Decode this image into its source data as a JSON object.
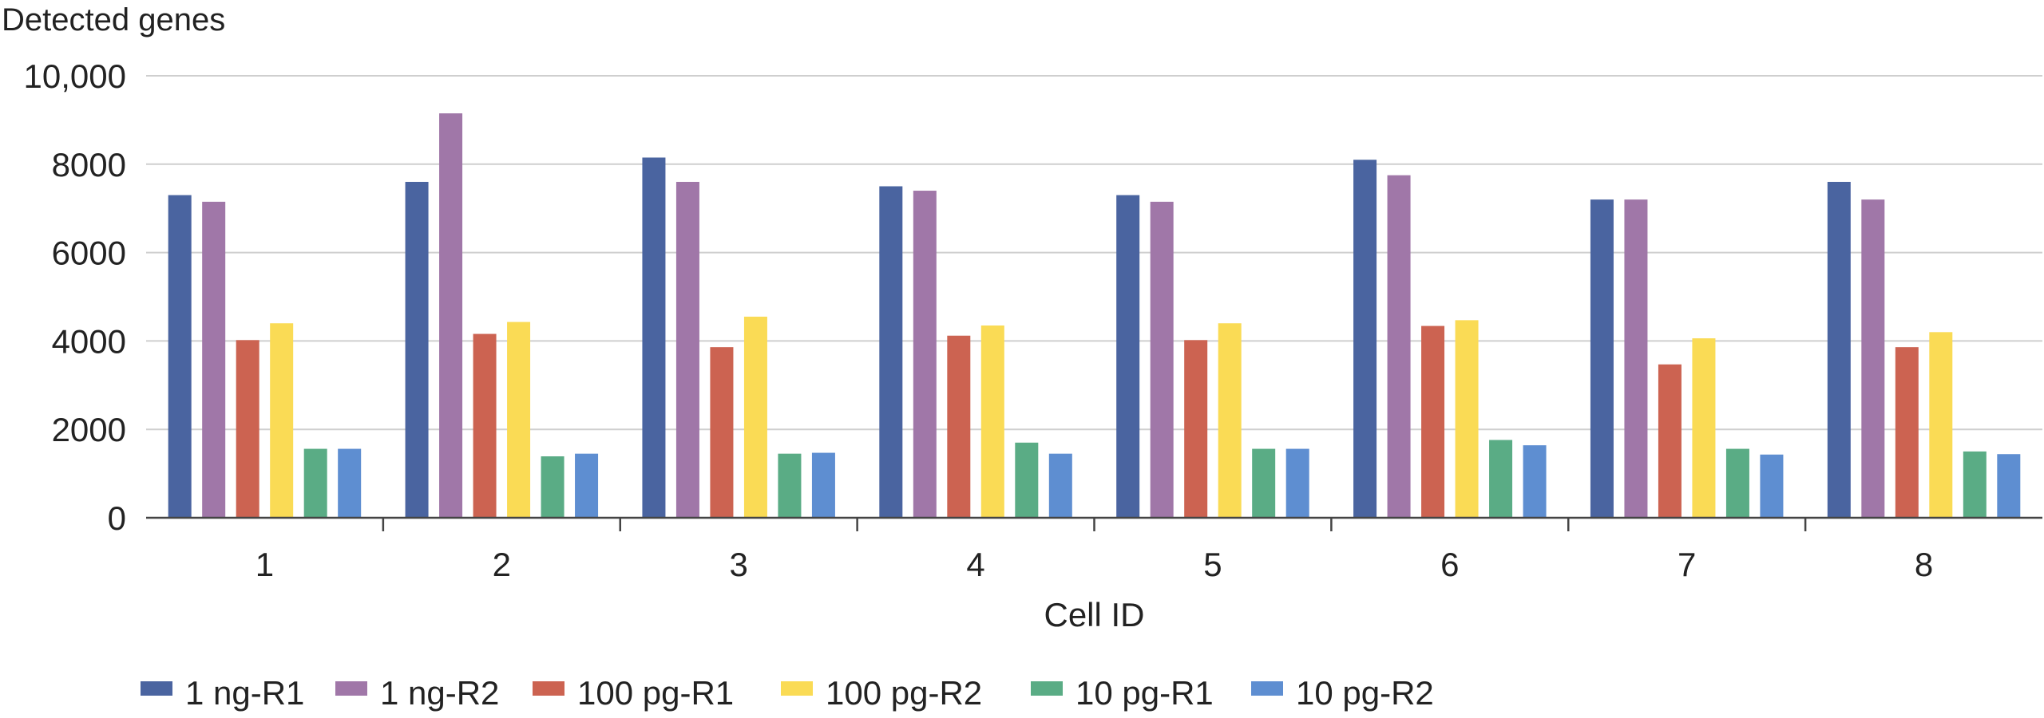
{
  "chart_data": {
    "type": "bar",
    "title": "",
    "ylabel": "Detected genes",
    "xlabel": "Cell ID",
    "ylim": [
      0,
      10000
    ],
    "yticks": [
      0,
      2000,
      4000,
      6000,
      8000,
      10000
    ],
    "ytick_labels": [
      "0",
      "2000",
      "4000",
      "6000",
      "8000",
      "10,000"
    ],
    "grid": true,
    "legend_position": "bottom",
    "categories": [
      "1",
      "2",
      "3",
      "4",
      "5",
      "6",
      "7",
      "8"
    ],
    "series": [
      {
        "name": "1 ng-R1",
        "color": "#4a64a0",
        "values": [
          7300,
          7600,
          8150,
          7500,
          7300,
          8100,
          7200,
          7600
        ]
      },
      {
        "name": "1 ng-R2",
        "color": "#a077a8",
        "values": [
          7150,
          9150,
          7600,
          7400,
          7150,
          7750,
          7200,
          7200
        ]
      },
      {
        "name": "100 pg-R1",
        "color": "#cc6351",
        "values": [
          4020,
          4160,
          3860,
          4120,
          4020,
          4340,
          3470,
          3860
        ]
      },
      {
        "name": "100 pg-R2",
        "color": "#fadb55",
        "values": [
          4400,
          4430,
          4550,
          4350,
          4400,
          4470,
          4060,
          4200
        ]
      },
      {
        "name": "10 pg-R1",
        "color": "#5aac85",
        "values": [
          1560,
          1390,
          1450,
          1700,
          1560,
          1760,
          1560,
          1500
        ]
      },
      {
        "name": "10 pg-R2",
        "color": "#5e8ed1",
        "values": [
          1560,
          1450,
          1470,
          1450,
          1560,
          1640,
          1430,
          1440
        ]
      }
    ]
  }
}
